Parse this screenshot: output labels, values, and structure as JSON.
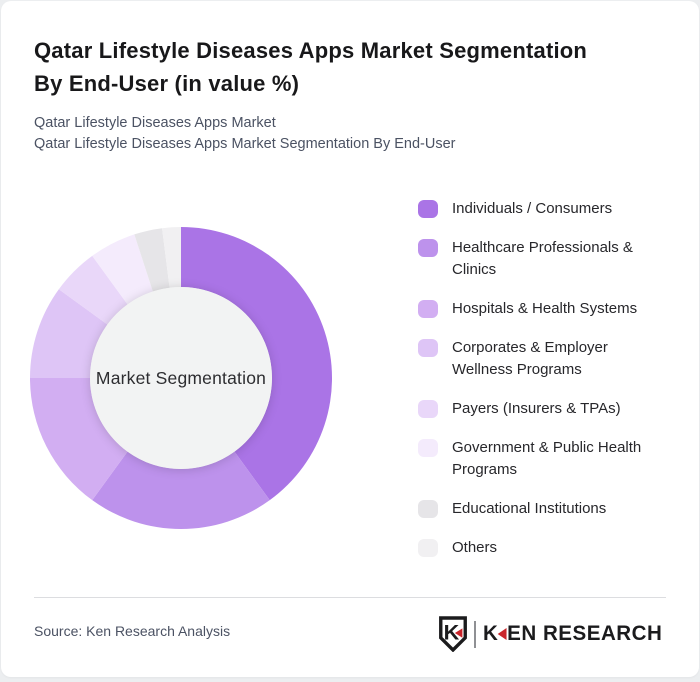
{
  "page": {
    "title": "Qatar Lifestyle Diseases Apps Market Segmentation\nBy End-User (in value %)",
    "subtitle_line1": "Qatar Lifestyle Diseases Apps Market",
    "subtitle_line2": "Qatar Lifestyle Diseases Apps Market Segmentation By End-User",
    "source": "Source: Ken Research Analysis",
    "brand": {
      "wordmark_first_letter": "K",
      "wordmark_rest": "EN RESEARCH",
      "badge_letter": "K",
      "accent_color": "#c9252b"
    }
  },
  "chart_data": {
    "type": "pie",
    "variant": "donut",
    "title": "Qatar Lifestyle Diseases Apps Market Segmentation By End-User (in value %)",
    "center_label": "Market Segmentation",
    "start_angle_deg": 0,
    "direction": "clockwise",
    "outer_radius_px": 151,
    "inner_radius_px": 91,
    "hole_color": "#f2f3f3",
    "legend_position": "right",
    "values_shown_on_chart": false,
    "segments": [
      {
        "label": "Individuals / Consumers",
        "value_pct": 40,
        "color": "#aa74e6"
      },
      {
        "label": "Healthcare Professionals & Clinics",
        "value_pct": 20,
        "color": "#bd92ec"
      },
      {
        "label": "Hospitals & Health Systems",
        "value_pct": 15,
        "color": "#d2aef2"
      },
      {
        "label": "Corporates & Employer Wellness Programs",
        "value_pct": 10,
        "color": "#dec5f6"
      },
      {
        "label": "Payers (Insurers & TPAs)",
        "value_pct": 5,
        "color": "#e9d7f9"
      },
      {
        "label": "Government & Public Health Programs",
        "value_pct": 5,
        "color": "#f4ebfc"
      },
      {
        "label": "Educational Institutions",
        "value_pct": 3,
        "color": "#e6e5e8"
      },
      {
        "label": "Others",
        "value_pct": 2,
        "color": "#f1f0f2"
      }
    ]
  }
}
